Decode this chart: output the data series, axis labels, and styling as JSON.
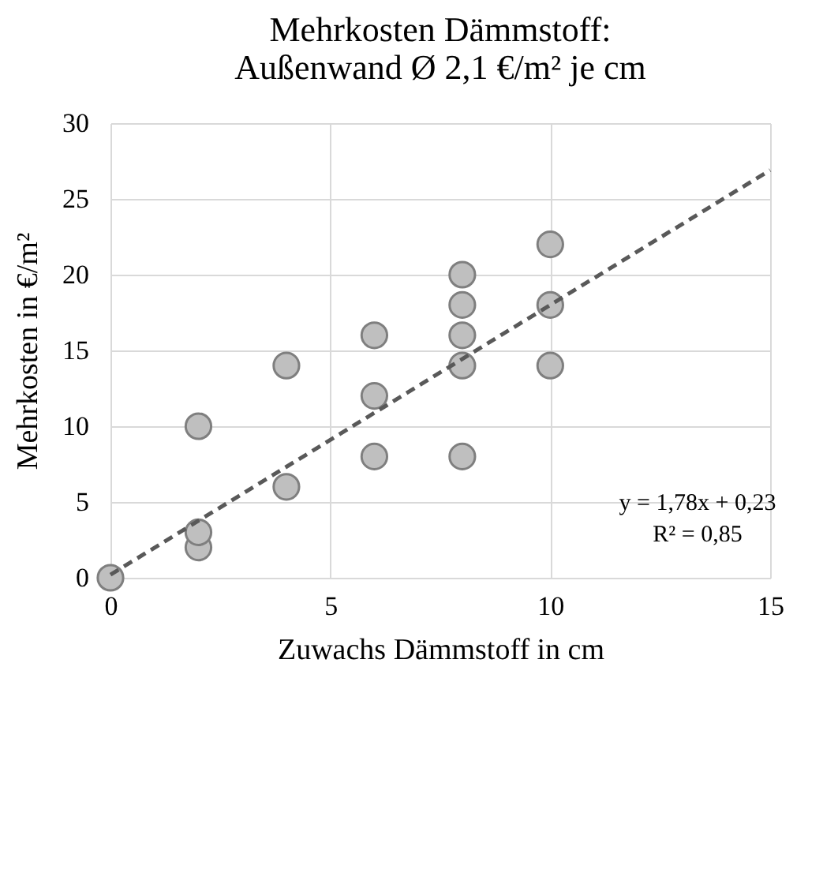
{
  "chart_data": {
    "type": "scatter",
    "title": "Mehrkosten Dämmstoff:\nAußenwand Ø 2,1 €/m² je cm",
    "xlabel": "Zuwachs Dämmstoff in cm",
    "ylabel": "Mehrkosten in €/m²",
    "xlim": [
      0,
      15
    ],
    "xticks": [
      0,
      5,
      10,
      15
    ],
    "ylim": [
      0,
      30
    ],
    "yticks": [
      0,
      5,
      10,
      15,
      20,
      25,
      30
    ],
    "grid": true,
    "annotations": [
      "y = 1,78x + 0,23",
      "R² = 0,85"
    ],
    "series": [
      {
        "color": "#bfbfbf",
        "marker": "circle",
        "x": [
          0,
          2,
          2,
          2,
          4,
          4,
          6,
          6,
          6,
          8,
          8,
          8,
          8,
          8,
          10,
          10,
          10
        ],
        "values": [
          0,
          2,
          3,
          10,
          6,
          14,
          8,
          12,
          16,
          8,
          14,
          16,
          18,
          20,
          14,
          18,
          22
        ]
      },
      {
        "type": "line",
        "color": "#595959",
        "marker": "none",
        "line_style": "dashed",
        "x": [
          0,
          15
        ],
        "values": [
          0.2,
          26.9
        ]
      }
    ]
  }
}
